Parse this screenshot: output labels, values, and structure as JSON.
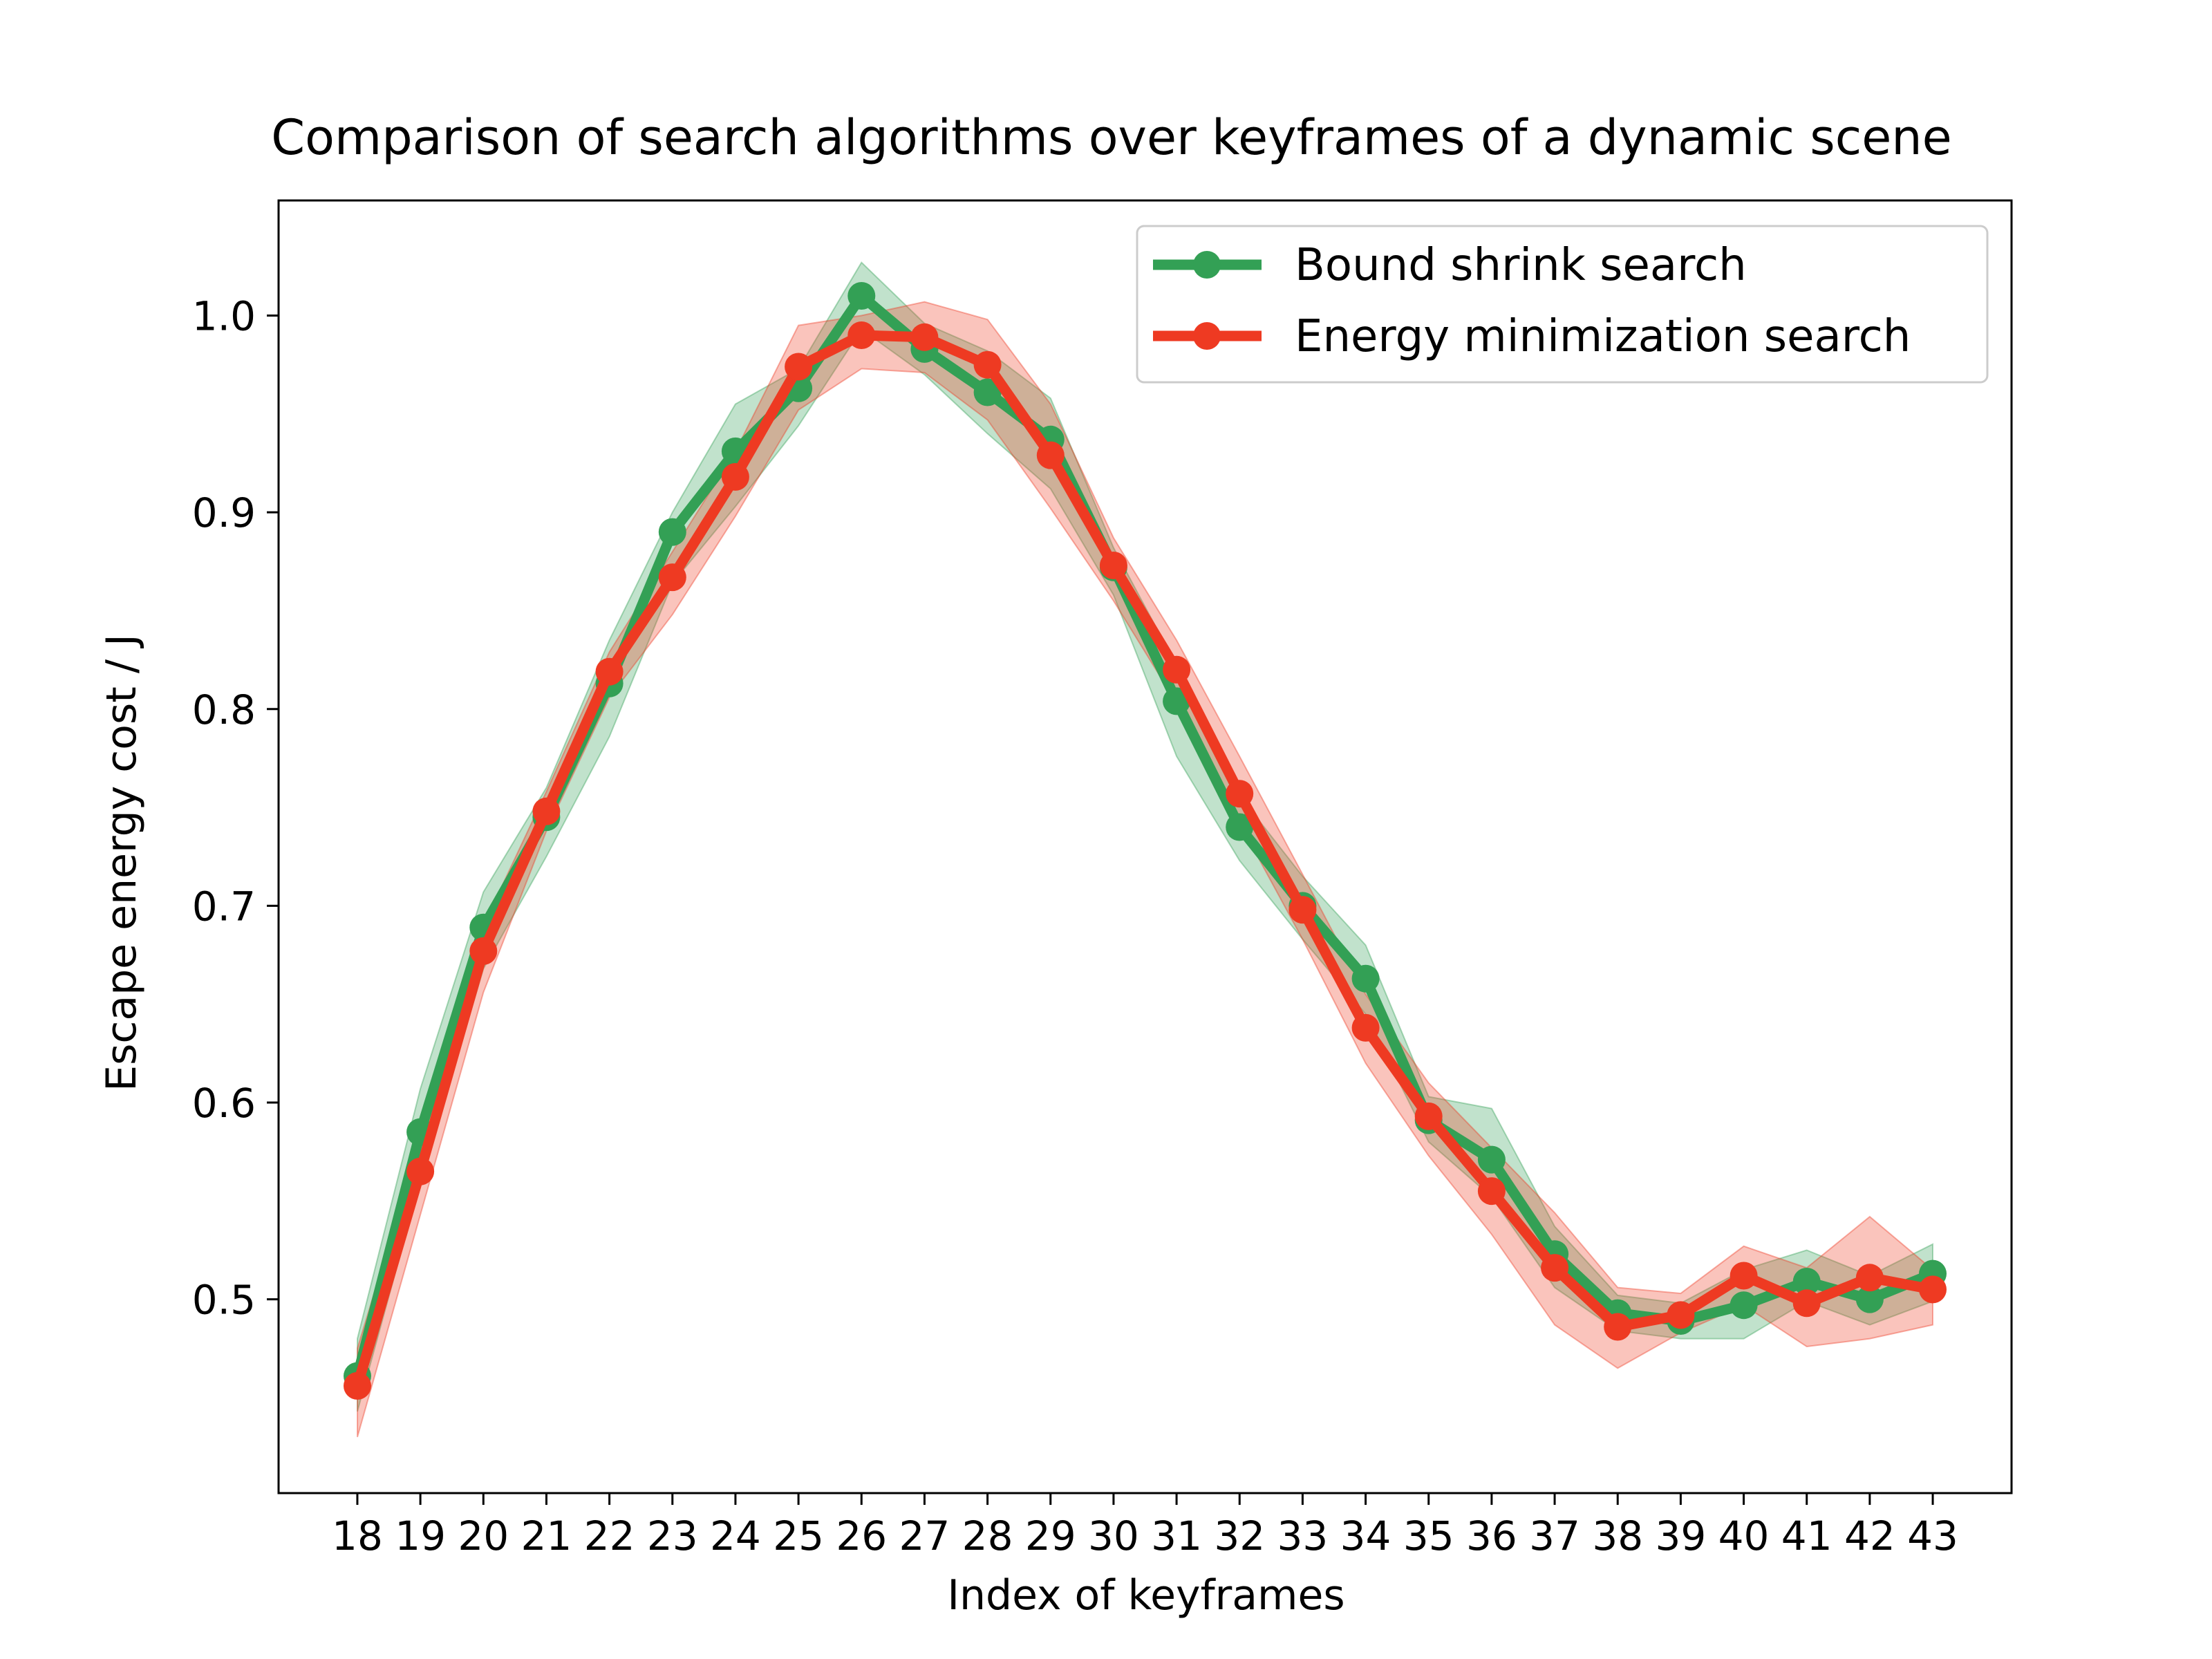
{
  "chart_data": {
    "type": "line",
    "title": "Comparison of search algorithms over keyframes of a dynamic scene",
    "xlabel": "Index of keyframes",
    "ylabel": "Escape energy cost / J",
    "x": [
      18,
      19,
      20,
      21,
      22,
      23,
      24,
      25,
      26,
      27,
      28,
      29,
      30,
      31,
      32,
      33,
      34,
      35,
      36,
      37,
      38,
      39,
      40,
      41,
      42,
      43
    ],
    "xlim": [
      16.75,
      44.25
    ],
    "ylim": [
      0.4015,
      1.0585
    ],
    "yticks": [
      0.5,
      0.6,
      0.7,
      0.8,
      0.9,
      1.0
    ],
    "ytick_labels": [
      "0.5",
      "0.6",
      "0.7",
      "0.8",
      "0.9",
      "1.0"
    ],
    "legend_position": "upper right",
    "grid": false,
    "series": [
      {
        "name": "Bound shrink search",
        "color": "#33a055",
        "marker": "circle",
        "values": [
          0.461,
          0.585,
          0.689,
          0.745,
          0.813,
          0.89,
          0.931,
          0.963,
          1.01,
          0.983,
          0.961,
          0.937,
          0.872,
          0.804,
          0.74,
          0.7,
          0.663,
          0.591,
          0.571,
          0.523,
          0.493,
          0.489,
          0.497,
          0.509,
          0.5,
          0.513
        ],
        "band_low": [
          0.443,
          0.56,
          0.668,
          0.725,
          0.786,
          0.864,
          0.903,
          0.944,
          0.993,
          0.97,
          0.94,
          0.912,
          0.858,
          0.776,
          0.723,
          0.683,
          0.645,
          0.58,
          0.552,
          0.506,
          0.484,
          0.48,
          0.48,
          0.499,
          0.487,
          0.499
        ],
        "band_high": [
          0.48,
          0.607,
          0.707,
          0.76,
          0.835,
          0.9,
          0.955,
          0.973,
          1.027,
          0.996,
          0.982,
          0.958,
          0.882,
          0.822,
          0.756,
          0.715,
          0.68,
          0.603,
          0.597,
          0.537,
          0.502,
          0.498,
          0.515,
          0.525,
          0.512,
          0.528
        ]
      },
      {
        "name": "Energy minimization search",
        "color": "#ee3a22",
        "marker": "circle",
        "values": [
          0.456,
          0.565,
          0.677,
          0.748,
          0.819,
          0.867,
          0.918,
          0.974,
          0.99,
          0.989,
          0.975,
          0.929,
          0.873,
          0.82,
          0.757,
          0.698,
          0.638,
          0.593,
          0.555,
          0.516,
          0.486,
          0.492,
          0.512,
          0.498,
          0.511,
          0.505
        ],
        "band_low": [
          0.43,
          0.543,
          0.656,
          0.738,
          0.806,
          0.848,
          0.898,
          0.952,
          0.973,
          0.971,
          0.947,
          0.902,
          0.855,
          0.803,
          0.742,
          0.683,
          0.62,
          0.573,
          0.533,
          0.487,
          0.465,
          0.483,
          0.497,
          0.476,
          0.48,
          0.487
        ],
        "band_high": [
          0.475,
          0.58,
          0.69,
          0.758,
          0.829,
          0.88,
          0.931,
          0.995,
          1.0,
          1.007,
          0.998,
          0.955,
          0.887,
          0.835,
          0.776,
          0.716,
          0.655,
          0.61,
          0.577,
          0.544,
          0.506,
          0.503,
          0.527,
          0.516,
          0.542,
          0.515
        ]
      }
    ]
  }
}
